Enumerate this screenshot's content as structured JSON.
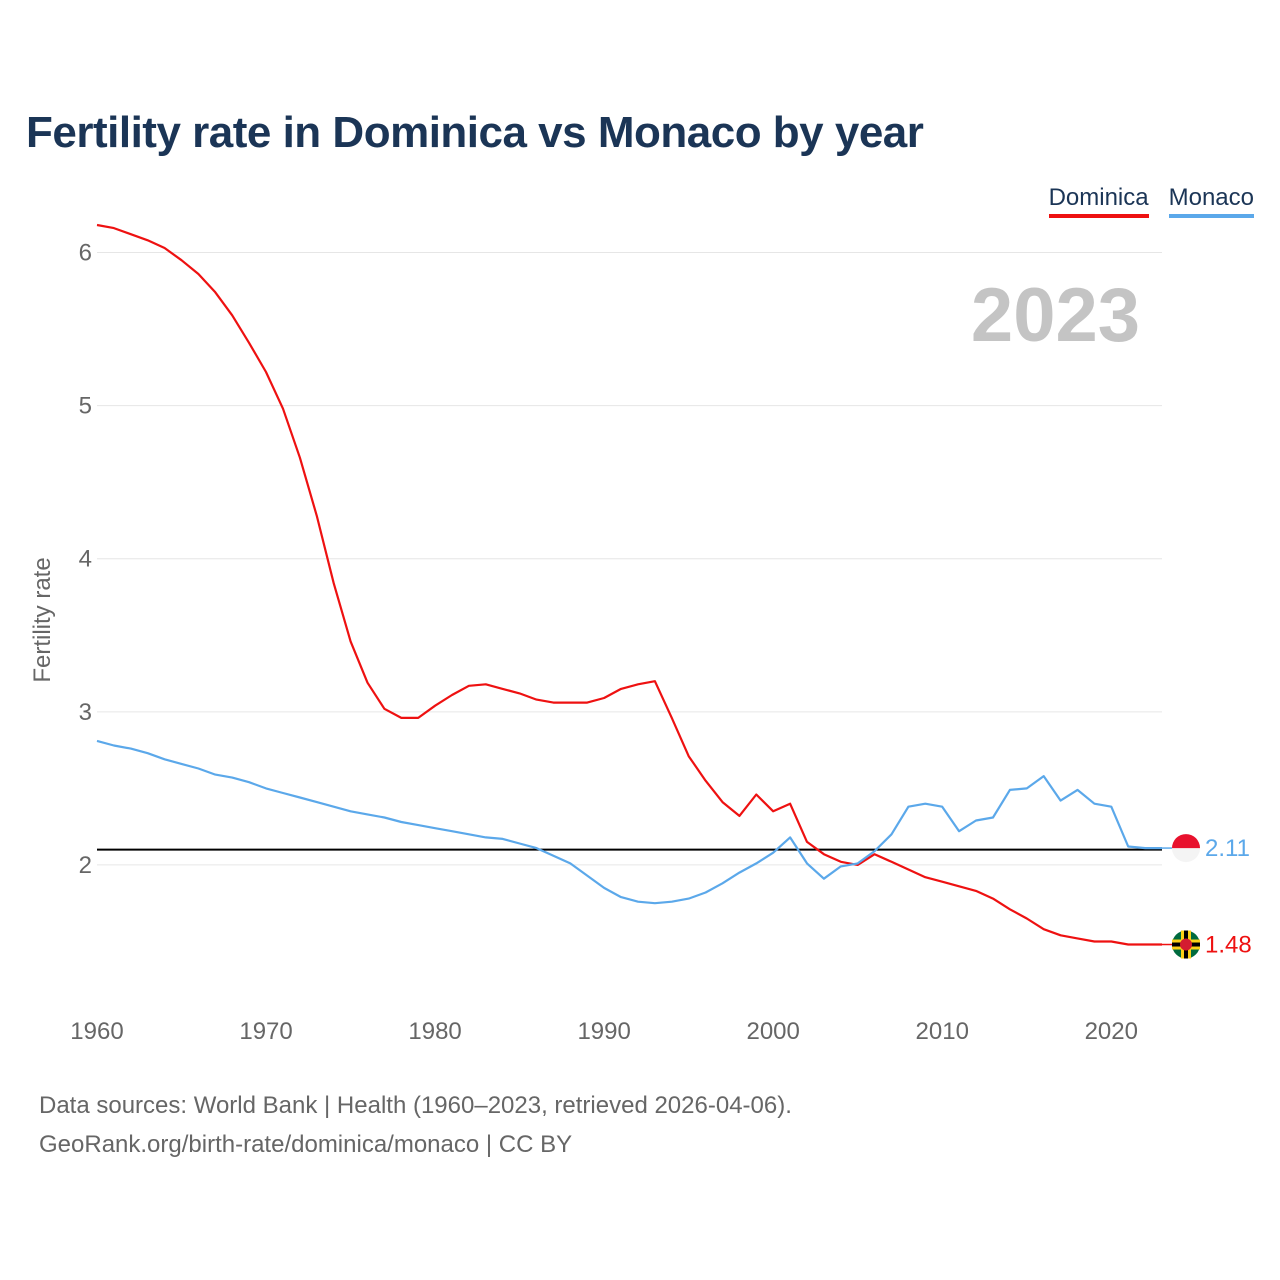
{
  "header": {
    "title": "Fertility rate in Dominica vs Monaco by year"
  },
  "legend": {
    "items": [
      {
        "label": "Dominica",
        "color": "#ee1111"
      },
      {
        "label": "Monaco",
        "color": "#5ba8ea"
      }
    ]
  },
  "footer": {
    "line1": "Data sources: World Bank | Health (1960–2023, retrieved 2026-04-06).",
    "line2": "GeoRank.org/birth-rate/dominica/monaco | CC BY"
  },
  "chart_data": {
    "type": "line",
    "title": "Fertility rate in Dominica vs Monaco by year",
    "xlabel": "",
    "ylabel": "Fertility rate",
    "year_label": "2023",
    "xlim": [
      1960,
      2023
    ],
    "ylim": [
      1.0,
      6.5
    ],
    "x_ticks": [
      1960,
      1970,
      1980,
      1990,
      2000,
      2010,
      2020
    ],
    "y_ticks": [
      2,
      3,
      4,
      5,
      6
    ],
    "grid": true,
    "legend_position": "top-right",
    "reference_line": {
      "value": 2.1,
      "color": "#000000"
    },
    "x": [
      1960,
      1961,
      1962,
      1963,
      1964,
      1965,
      1966,
      1967,
      1968,
      1969,
      1970,
      1971,
      1972,
      1973,
      1974,
      1975,
      1976,
      1977,
      1978,
      1979,
      1980,
      1981,
      1982,
      1983,
      1984,
      1985,
      1986,
      1987,
      1988,
      1989,
      1990,
      1991,
      1992,
      1993,
      1994,
      1995,
      1996,
      1997,
      1998,
      1999,
      2000,
      2001,
      2002,
      2003,
      2004,
      2005,
      2006,
      2007,
      2008,
      2009,
      2010,
      2011,
      2012,
      2013,
      2014,
      2015,
      2016,
      2017,
      2018,
      2019,
      2020,
      2021,
      2022,
      2023
    ],
    "series": [
      {
        "name": "Dominica",
        "color": "#ee1111",
        "end_label": "1.48",
        "values": [
          6.18,
          6.16,
          6.12,
          6.08,
          6.03,
          5.95,
          5.86,
          5.74,
          5.59,
          5.41,
          5.22,
          4.98,
          4.66,
          4.28,
          3.84,
          3.46,
          3.19,
          3.02,
          2.96,
          2.96,
          3.04,
          3.11,
          3.17,
          3.18,
          3.15,
          3.12,
          3.08,
          3.06,
          3.06,
          3.06,
          3.09,
          3.15,
          3.18,
          3.2,
          2.96,
          2.71,
          2.55,
          2.41,
          2.32,
          2.46,
          2.35,
          2.4,
          2.15,
          2.07,
          2.02,
          2.0,
          2.07,
          2.02,
          1.97,
          1.92,
          1.89,
          1.86,
          1.83,
          1.78,
          1.71,
          1.65,
          1.58,
          1.54,
          1.52,
          1.5,
          1.5,
          1.48,
          1.48,
          1.48
        ]
      },
      {
        "name": "Monaco",
        "color": "#5ba8ea",
        "end_label": "2.11",
        "values": [
          2.81,
          2.78,
          2.76,
          2.73,
          2.69,
          2.66,
          2.63,
          2.59,
          2.57,
          2.54,
          2.5,
          2.47,
          2.44,
          2.41,
          2.38,
          2.35,
          2.33,
          2.31,
          2.28,
          2.26,
          2.24,
          2.22,
          2.2,
          2.18,
          2.17,
          2.14,
          2.11,
          2.06,
          2.01,
          1.93,
          1.85,
          1.79,
          1.76,
          1.75,
          1.76,
          1.78,
          1.82,
          1.88,
          1.95,
          2.01,
          2.08,
          2.18,
          2.01,
          1.91,
          1.99,
          2.01,
          2.09,
          2.2,
          2.38,
          2.4,
          2.38,
          2.22,
          2.29,
          2.31,
          2.49,
          2.5,
          2.58,
          2.42,
          2.49,
          2.4,
          2.38,
          2.12,
          2.11,
          2.11
        ]
      }
    ]
  }
}
